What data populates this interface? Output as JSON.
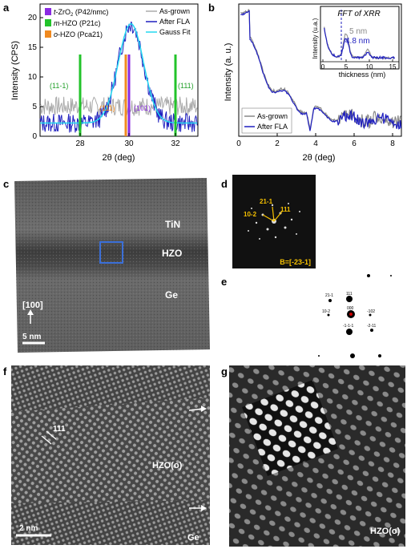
{
  "panels": {
    "a": {
      "letter": "a",
      "ylabel": "Intensity (CPS)",
      "xlabel": "2θ (deg)",
      "xticks": [
        "28",
        "30",
        "32"
      ],
      "yticks": [
        "0",
        "5",
        "10",
        "15",
        "20"
      ],
      "legend_left": [
        {
          "pre": "t",
          "text": "-ZrO",
          "sub": "2",
          "post": " (P42/nmc)",
          "color": "#8a2be2"
        },
        {
          "pre": "m",
          "text": "-HZO (P21c)",
          "sub": "",
          "post": "",
          "color": "#22c32a"
        },
        {
          "pre": "o",
          "text": "-HZO (Pca21)",
          "sub": "",
          "post": "",
          "color": "#f08a20"
        }
      ],
      "legend_right": [
        {
          "text": "As-grown",
          "color": "#aaaaaa"
        },
        {
          "text": "After FLA",
          "color": "#1f1fbf"
        },
        {
          "text": "Gauss Fit",
          "color": "#22d8f0"
        }
      ],
      "peak_labels": [
        {
          "text": "(11-1)",
          "color": "#22a02a"
        },
        {
          "text": "(111)",
          "color": "#22a02a"
        },
        {
          "text": "(111)",
          "color": "#f08a20"
        },
        {
          "text": "(101)",
          "color": "#8a2be2"
        }
      ]
    },
    "b": {
      "letter": "b",
      "ylabel": "Intensity (a. u.)",
      "xlabel": "2θ (deg)",
      "xticks": [
        "0",
        "2",
        "4",
        "6",
        "8"
      ],
      "legend": [
        {
          "text": "As-grown",
          "color": "#888888"
        },
        {
          "text": "After FLA",
          "color": "#1f1fbf"
        }
      ],
      "inset": {
        "title": "FFT of XRR",
        "ylabel": "Intensity (u.a.)",
        "xlabel": "thickness (nm)",
        "xticks": [
          "0",
          "5",
          "10",
          "15"
        ],
        "val1": "5 nm",
        "val2": "4.8 nm"
      }
    },
    "c": {
      "letter": "c",
      "label_tin": "TiN",
      "label_hzo": "HZO",
      "label_ge": "Ge",
      "label_dir": "[100]",
      "scale": "5 nm"
    },
    "d": {
      "letter": "d",
      "l1": "21-1",
      "l2": "10-2",
      "l3": "111",
      "zone": "B=[-23-1]"
    },
    "e": {
      "letter": "e",
      "s1": "21-1",
      "s2": "111",
      "s3": "000",
      "s4": "10-2",
      "s5": "-102",
      "s6": "-1-1-1",
      "s7": "-2-11"
    },
    "f": {
      "letter": "f",
      "plane": "111",
      "label_hzo": "HZO(o)",
      "label_ge": "Ge",
      "scale": "2 nm"
    },
    "g": {
      "letter": "g",
      "label_hzo": "HZO(o)"
    }
  }
}
